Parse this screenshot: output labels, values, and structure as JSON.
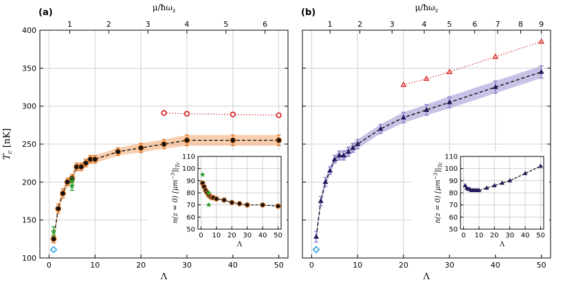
{
  "chart_data": [
    {
      "type": "scatter",
      "panel_label": "(a)",
      "xlabel": "Λ",
      "ylabel": "T_c [nK]",
      "ylabel_main": "T",
      "ylabel_sub": "c",
      "ylabel_unit": "[nK]",
      "xlim": [
        -2,
        52
      ],
      "ylim": [
        100,
        400
      ],
      "x_ticks": [
        0,
        10,
        20,
        30,
        40,
        50
      ],
      "y_ticks": [
        100,
        150,
        200,
        250,
        300,
        350,
        400
      ],
      "grid": true,
      "top_axis": {
        "label": "μ/ħω_z",
        "label_text": "μ/ħω",
        "label_sub": "z",
        "ticks": [
          {
            "label": "1",
            "lambda": 4.5
          },
          {
            "label": "2",
            "lambda": 13
          },
          {
            "label": "3",
            "lambda": 21.5
          },
          {
            "label": "4",
            "lambda": 30
          },
          {
            "label": "5",
            "lambda": 38.5
          },
          {
            "label": "6",
            "lambda": 47
          }
        ]
      },
      "series": [
        {
          "name": "main (filled circles)",
          "marker": "circle",
          "color": "#e07a2a",
          "x": [
            1,
            2,
            3,
            4,
            5,
            6,
            7,
            8,
            9,
            10,
            15,
            20,
            25,
            30,
            40,
            50
          ],
          "y": [
            125,
            165,
            185,
            200,
            205,
            220,
            220,
            225,
            230,
            230,
            240,
            245,
            250,
            255,
            255,
            255
          ],
          "err": [
            5,
            6,
            6,
            5,
            5,
            5,
            5,
            5,
            5,
            5,
            5,
            6,
            6,
            7,
            7,
            7
          ]
        },
        {
          "name": "dashed curve",
          "style": "dashed",
          "x": [
            1,
            2,
            3,
            4,
            5,
            6,
            7,
            8,
            9,
            10,
            15,
            20,
            25,
            30,
            40,
            50
          ],
          "y": [
            125,
            165,
            185,
            200,
            205,
            220,
            220,
            225,
            230,
            230,
            240,
            245,
            250,
            255,
            255,
            255
          ]
        },
        {
          "name": "shaded band",
          "style": "band",
          "x": [
            1,
            2,
            3,
            4,
            5,
            6,
            7,
            8,
            9,
            10,
            15,
            20,
            25,
            30,
            40,
            50
          ],
          "lower": [
            120,
            159,
            179,
            195,
            200,
            215,
            215,
            220,
            225,
            225,
            235,
            239,
            244,
            248,
            248,
            248
          ],
          "upper": [
            130,
            171,
            191,
            205,
            210,
            225,
            225,
            230,
            235,
            235,
            245,
            251,
            256,
            262,
            262,
            262
          ]
        },
        {
          "name": "open circles (dotted)",
          "marker": "open-circle",
          "color": "#d62728",
          "x": [
            25,
            30,
            40,
            50
          ],
          "y": [
            291,
            290,
            289,
            288
          ]
        },
        {
          "name": "green stars",
          "marker": "star",
          "color": "#2ca02c",
          "x": [
            1,
            5,
            5
          ],
          "y": [
            135,
            195,
            201
          ],
          "err": [
            6,
            6,
            5
          ]
        },
        {
          "name": "blue diamond",
          "marker": "diamond",
          "color": "#29a3e0",
          "x": [
            1
          ],
          "y": [
            111
          ]
        }
      ],
      "inset": {
        "xlabel": "Λ",
        "ylabel": "n(z=0)|μm⁻³||T_c",
        "ylabel_text": "n(z = 0) [μm",
        "ylabel_sup": "−3",
        "ylabel_end": "]|",
        "ylabel_sub": "Tc",
        "xlim": [
          -2,
          52
        ],
        "ylim": [
          50,
          110
        ],
        "x_ticks": [
          0,
          10,
          20,
          30,
          40,
          50
        ],
        "y_ticks": [
          50,
          60,
          70,
          80,
          90,
          100,
          110
        ],
        "series": [
          {
            "name": "inset circles",
            "marker": "circle",
            "color": "#e07a2a",
            "x": [
              1,
              2,
              3,
              4,
              5,
              6,
              7,
              8,
              10,
              15,
              20,
              25,
              30,
              40,
              50
            ],
            "y": [
              88,
              85,
              82,
              80,
              78,
              77,
              76,
              76,
              75,
              74,
              72,
              71,
              70,
              70,
              69
            ]
          },
          {
            "name": "inset stars",
            "marker": "star",
            "color": "#2ca02c",
            "x": [
              1,
              5,
              5
            ],
            "y": [
              95,
              70,
              80
            ]
          }
        ]
      }
    },
    {
      "type": "scatter",
      "panel_label": "(b)",
      "xlabel": "Λ",
      "xlim": [
        -2,
        52
      ],
      "ylim": [
        100,
        400
      ],
      "x_ticks": [
        0,
        10,
        20,
        30,
        40,
        50
      ],
      "y_ticks": [
        100,
        150,
        200,
        250,
        300,
        350,
        400
      ],
      "grid": true,
      "top_axis": {
        "label": "μ/ħω_z",
        "label_text": "μ/ħω",
        "label_sub": "z",
        "ticks": [
          {
            "label": "1",
            "lambda": 4
          },
          {
            "label": "2",
            "lambda": 10.5
          },
          {
            "label": "3",
            "lambda": 17.5
          },
          {
            "label": "4",
            "lambda": 24.5
          },
          {
            "label": "5",
            "lambda": 30
          },
          {
            "label": "6",
            "lambda": 35.5
          },
          {
            "label": "7",
            "lambda": 40.5
          },
          {
            "label": "8",
            "lambda": 45.5
          },
          {
            "label": "9",
            "lambda": 50
          }
        ]
      },
      "series": [
        {
          "name": "main (filled triangles)",
          "marker": "triangle",
          "color": "#231a5a",
          "x": [
            1,
            2,
            3,
            4,
            5,
            6,
            7,
            8,
            9,
            10,
            15,
            20,
            25,
            30,
            40,
            50
          ],
          "y": [
            128,
            175,
            200,
            215,
            230,
            235,
            235,
            240,
            245,
            250,
            270,
            285,
            295,
            305,
            325,
            345
          ],
          "err": [
            7,
            6,
            6,
            5,
            5,
            6,
            6,
            6,
            6,
            6,
            6,
            7,
            7,
            7,
            8,
            8
          ]
        },
        {
          "name": "dashed curve",
          "style": "dashed",
          "x": [
            1,
            2,
            3,
            4,
            5,
            6,
            7,
            8,
            9,
            10,
            15,
            20,
            25,
            30,
            40,
            50
          ],
          "y": [
            128,
            175,
            200,
            215,
            230,
            235,
            235,
            240,
            245,
            250,
            270,
            285,
            295,
            305,
            325,
            345
          ]
        },
        {
          "name": "shaded band",
          "style": "band",
          "x": [
            1,
            2,
            3,
            4,
            5,
            6,
            7,
            8,
            9,
            10,
            15,
            20,
            25,
            30,
            40,
            50
          ],
          "lower": [
            122,
            169,
            194,
            210,
            225,
            229,
            229,
            234,
            239,
            244,
            264,
            278,
            288,
            297,
            317,
            337
          ],
          "upper": [
            134,
            181,
            206,
            220,
            235,
            241,
            241,
            246,
            251,
            256,
            276,
            292,
            302,
            313,
            333,
            353
          ]
        },
        {
          "name": "open triangles (dotted)",
          "marker": "triangle",
          "color": "#d62728",
          "x": [
            20,
            25,
            30,
            40,
            50
          ],
          "y": [
            328,
            336,
            345,
            365,
            385
          ]
        },
        {
          "name": "blue diamond",
          "marker": "diamond",
          "color": "#29a3e0",
          "x": [
            1
          ],
          "y": [
            111
          ]
        }
      ],
      "inset": {
        "xlabel": "Λ",
        "ylabel": "n(z=0)|μm⁻³||T_c",
        "ylabel_text": "n(z = 0) [μm",
        "ylabel_sup": "−3",
        "ylabel_end": "]|",
        "ylabel_sub": "Tc",
        "xlim": [
          -2,
          52
        ],
        "ylim": [
          50,
          110
        ],
        "x_ticks": [
          0,
          10,
          20,
          30,
          40,
          50
        ],
        "y_ticks": [
          50,
          60,
          70,
          80,
          90,
          100,
          110
        ],
        "series": [
          {
            "name": "inset triangles",
            "marker": "triangle",
            "color": "#231a5a",
            "x": [
              1,
              2,
              3,
              4,
              5,
              6,
              7,
              8,
              9,
              10,
              15,
              20,
              25,
              30,
              40,
              50
            ],
            "y": [
              86,
              84,
              83,
              83,
              82,
              82,
              82,
              82,
              82,
              82,
              84,
              86,
              88,
              90,
              96,
              102
            ]
          }
        ]
      }
    }
  ]
}
